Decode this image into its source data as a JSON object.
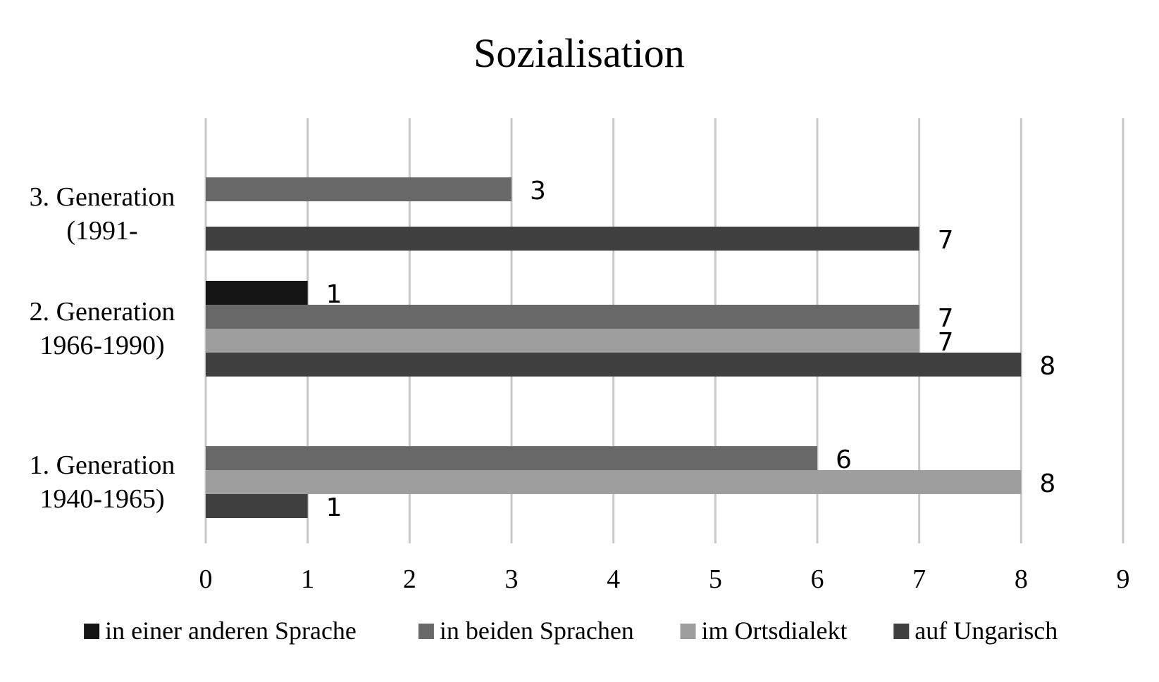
{
  "chart_data": {
    "type": "bar",
    "orientation": "horizontal",
    "title": "Sozialisation",
    "xlim": [
      0,
      9
    ],
    "x_ticks": [
      "0",
      "1",
      "2",
      "3",
      "4",
      "5",
      "6",
      "7",
      "8",
      "9"
    ],
    "grid": "vertical",
    "legend_position": "bottom",
    "categories": [
      {
        "lines": [
          "1. Generation",
          "1940-1965)"
        ]
      },
      {
        "lines": [
          "2. Generation",
          "1966-1990)"
        ]
      },
      {
        "lines": [
          "3. Generation",
          "(1991-"
        ]
      }
    ],
    "series": [
      {
        "name": "in einer anderen Sprache",
        "color": "#151515",
        "values": [
          null,
          1,
          null
        ]
      },
      {
        "name": "in beiden Sprachen",
        "color": "#686868",
        "values": [
          6,
          7,
          3
        ]
      },
      {
        "name": "im Ortsdialekt",
        "color": "#9e9e9e",
        "values": [
          8,
          7,
          null
        ]
      },
      {
        "name": "auf Ungarisch",
        "color": "#404040",
        "values": [
          1,
          8,
          7
        ]
      }
    ]
  }
}
